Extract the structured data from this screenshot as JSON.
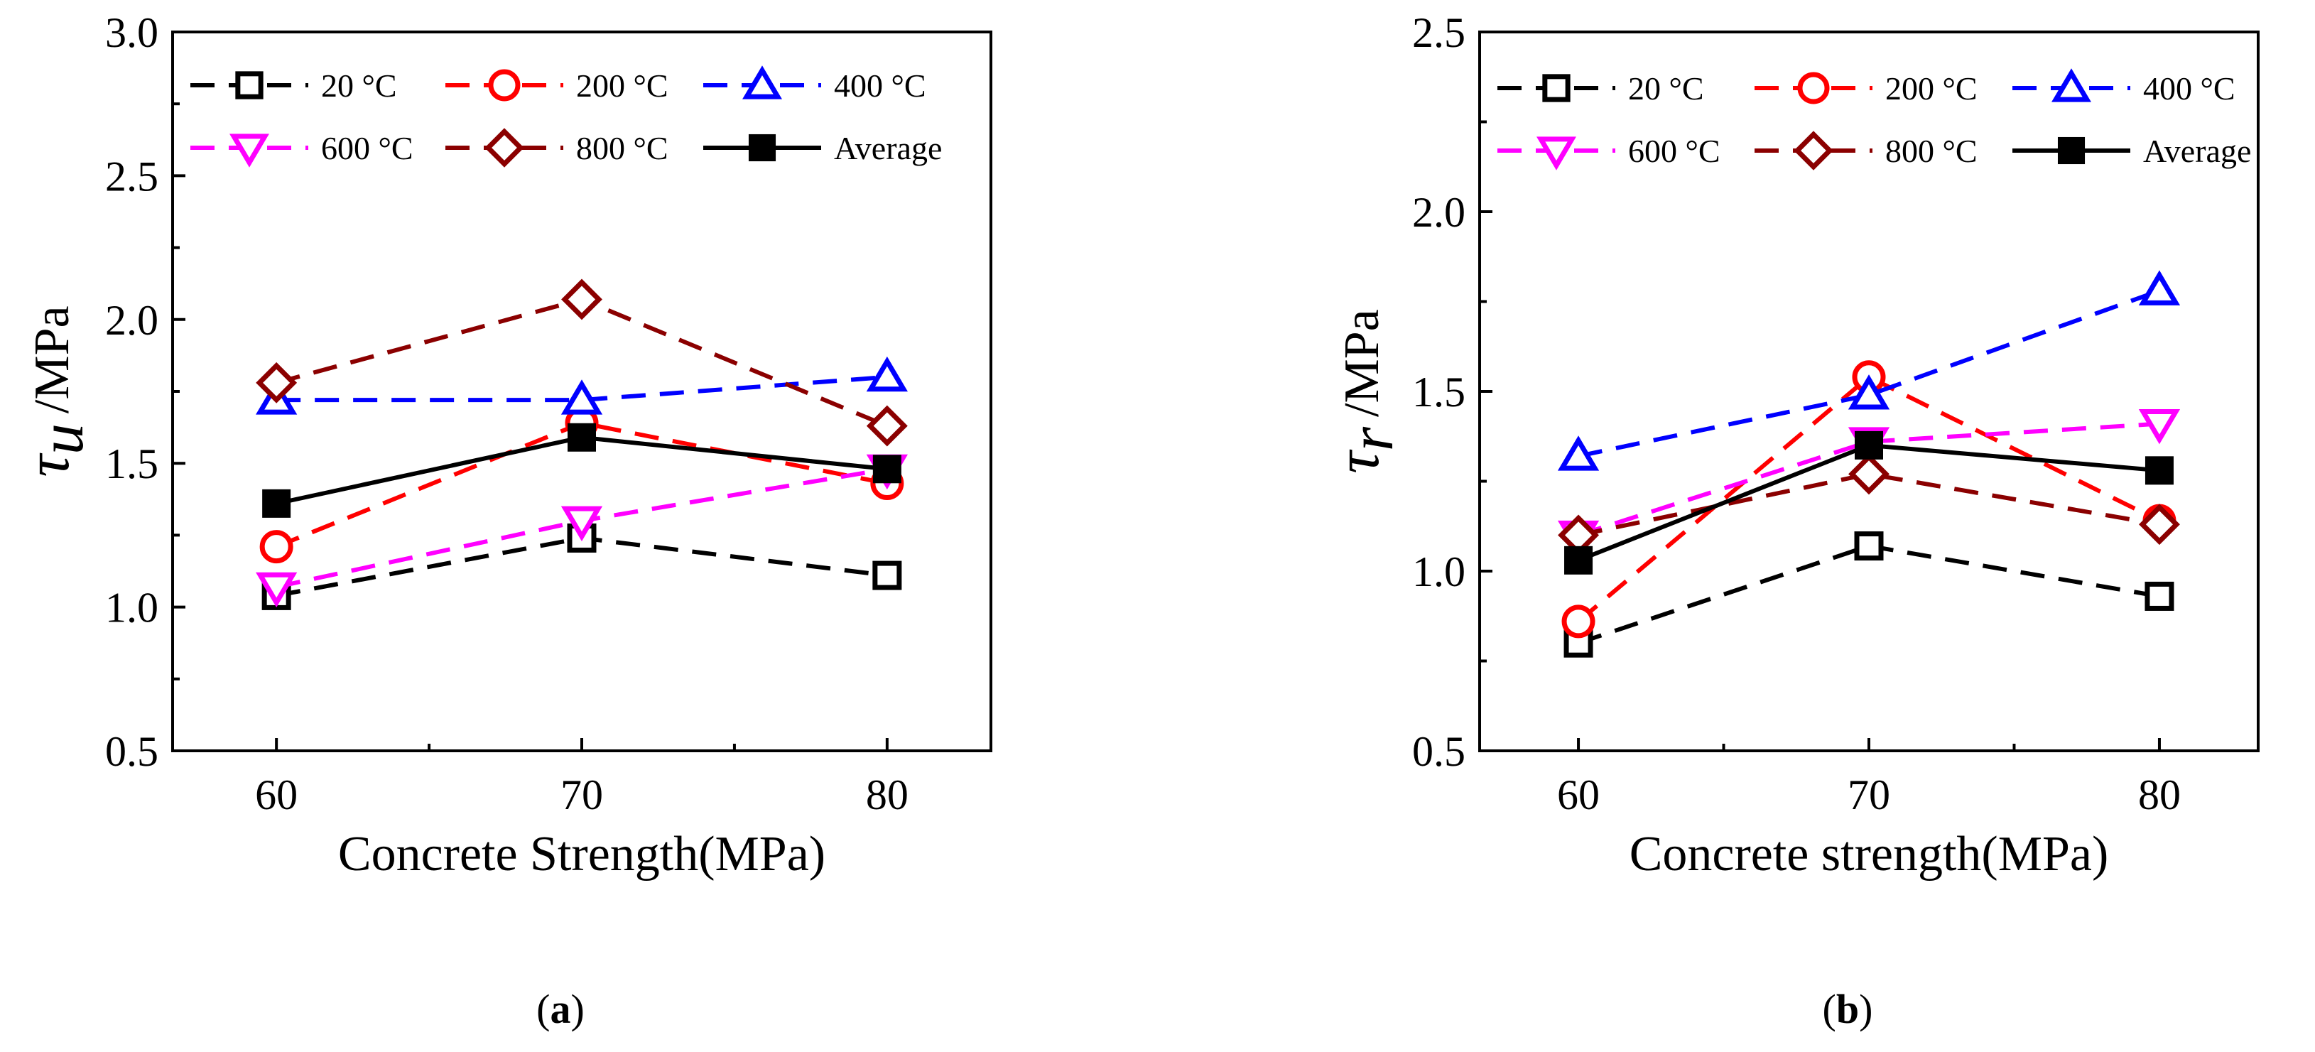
{
  "chart_data": [
    {
      "type": "line",
      "panel_label": "a",
      "title": "",
      "xlabel": "Concrete Strength(MPa)",
      "ylabel_symbol": "τ",
      "ylabel_subscript": "u",
      "ylabel_unit": "/MPa",
      "categories": [
        "60",
        "70",
        "80"
      ],
      "x": [
        60,
        70,
        80
      ],
      "xlim": [
        56.6,
        83.4
      ],
      "ylim": [
        0.5,
        3.0
      ],
      "yticks": [
        0.5,
        1.0,
        1.5,
        2.0,
        2.5,
        3.0
      ],
      "ytick_labels": [
        "0.5",
        "1.0",
        "1.5",
        "2.0",
        "2.5",
        "3.0"
      ],
      "legend_position": "top",
      "series": [
        {
          "name": "20 °C",
          "color": "#000000",
          "marker": "square-open",
          "dash": "dashed",
          "values": [
            1.04,
            1.24,
            1.11
          ]
        },
        {
          "name": "200 °C",
          "color": "#ff0000",
          "marker": "circle-open",
          "dash": "dashed",
          "values": [
            1.21,
            1.64,
            1.43
          ]
        },
        {
          "name": "400 °C",
          "color": "#0000ff",
          "marker": "triangle-up-open",
          "dash": "dashed",
          "values": [
            1.72,
            1.72,
            1.8
          ]
        },
        {
          "name": "600 °C",
          "color": "#ff00ff",
          "marker": "triangle-down-open",
          "dash": "dashed",
          "values": [
            1.07,
            1.3,
            1.48
          ]
        },
        {
          "name": "800 °C",
          "color": "#8b0000",
          "marker": "diamond-open",
          "dash": "dashed",
          "values": [
            1.78,
            2.07,
            1.63
          ]
        },
        {
          "name": "Average",
          "color": "#000000",
          "marker": "square-filled",
          "dash": "solid",
          "values": [
            1.36,
            1.59,
            1.48
          ]
        }
      ]
    },
    {
      "type": "line",
      "panel_label": "b",
      "title": "",
      "xlabel": "Concrete strength(MPa)",
      "ylabel_symbol": "τ",
      "ylabel_subscript": "r",
      "ylabel_unit": "/MPa",
      "categories": [
        "60",
        "70",
        "80"
      ],
      "x": [
        60,
        70,
        80
      ],
      "xlim": [
        56.6,
        83.4
      ],
      "ylim": [
        0.5,
        2.5
      ],
      "yticks": [
        0.5,
        1.0,
        1.5,
        2.0,
        2.5
      ],
      "ytick_labels": [
        "0.5",
        "1.0",
        "1.5",
        "2.0",
        "2.5"
      ],
      "legend_position": "top",
      "series": [
        {
          "name": "20 °C",
          "color": "#000000",
          "marker": "square-open",
          "dash": "dashed",
          "values": [
            0.8,
            1.07,
            0.93
          ]
        },
        {
          "name": "200 °C",
          "color": "#ff0000",
          "marker": "circle-open",
          "dash": "dashed",
          "values": [
            0.86,
            1.54,
            1.14
          ]
        },
        {
          "name": "400 °C",
          "color": "#0000ff",
          "marker": "triangle-up-open",
          "dash": "dashed",
          "values": [
            1.32,
            1.49,
            1.78
          ]
        },
        {
          "name": "600 °C",
          "color": "#ff00ff",
          "marker": "triangle-down-open",
          "dash": "dashed",
          "values": [
            1.1,
            1.36,
            1.41
          ]
        },
        {
          "name": "800 °C",
          "color": "#8b0000",
          "marker": "diamond-open",
          "dash": "dashed",
          "values": [
            1.1,
            1.27,
            1.13
          ]
        },
        {
          "name": "Average",
          "color": "#000000",
          "marker": "square-filled",
          "dash": "solid",
          "values": [
            1.03,
            1.35,
            1.28
          ]
        }
      ]
    }
  ]
}
